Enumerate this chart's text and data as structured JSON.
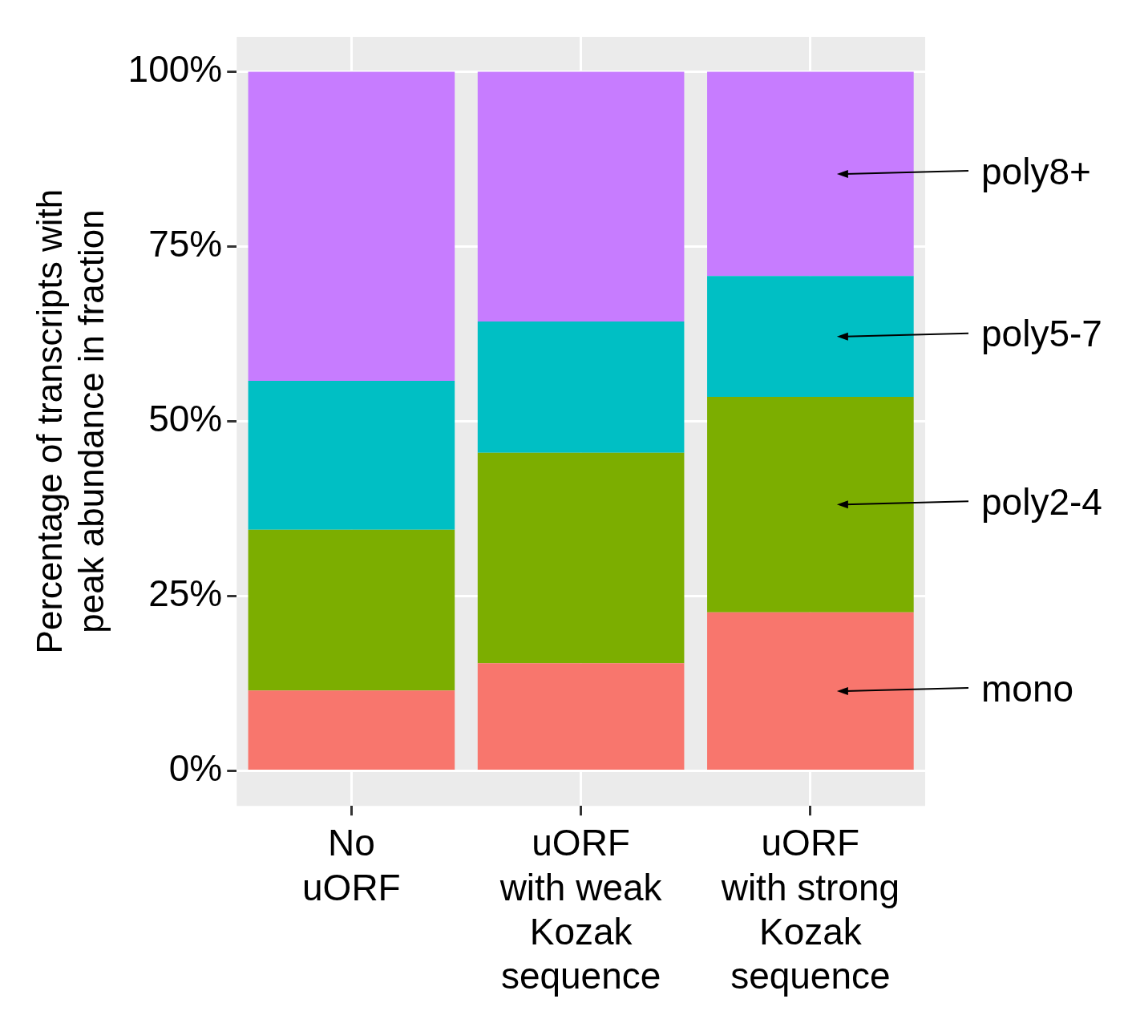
{
  "chart_data": {
    "type": "bar",
    "stacked": true,
    "ylabel": "Percentage of transcripts with\npeak abundance in fraction",
    "categories": [
      "No\nuORF",
      "uORF\nwith weak\nKozak\nsequence",
      "uORF\nwith strong\nKozak\nsequence"
    ],
    "series": [
      {
        "name": "mono",
        "color": "#f8766d",
        "values": [
          11.5,
          15.4,
          22.7
        ]
      },
      {
        "name": "poly2-4",
        "color": "#7cae00",
        "values": [
          23.0,
          30.1,
          30.8
        ]
      },
      {
        "name": "poly5-7",
        "color": "#00bfc4",
        "values": [
          21.3,
          18.8,
          17.3
        ]
      },
      {
        "name": "poly8+",
        "color": "#c77cff",
        "values": [
          44.2,
          35.7,
          29.2
        ]
      }
    ],
    "ylim": [
      -5,
      105
    ],
    "yticks": [
      {
        "value": 0,
        "label": "0%"
      },
      {
        "value": 25,
        "label": "25%"
      },
      {
        "value": 50,
        "label": "50%"
      },
      {
        "value": 75,
        "label": "75%"
      },
      {
        "value": 100,
        "label": "100%"
      }
    ],
    "grid": true,
    "legend": false
  }
}
